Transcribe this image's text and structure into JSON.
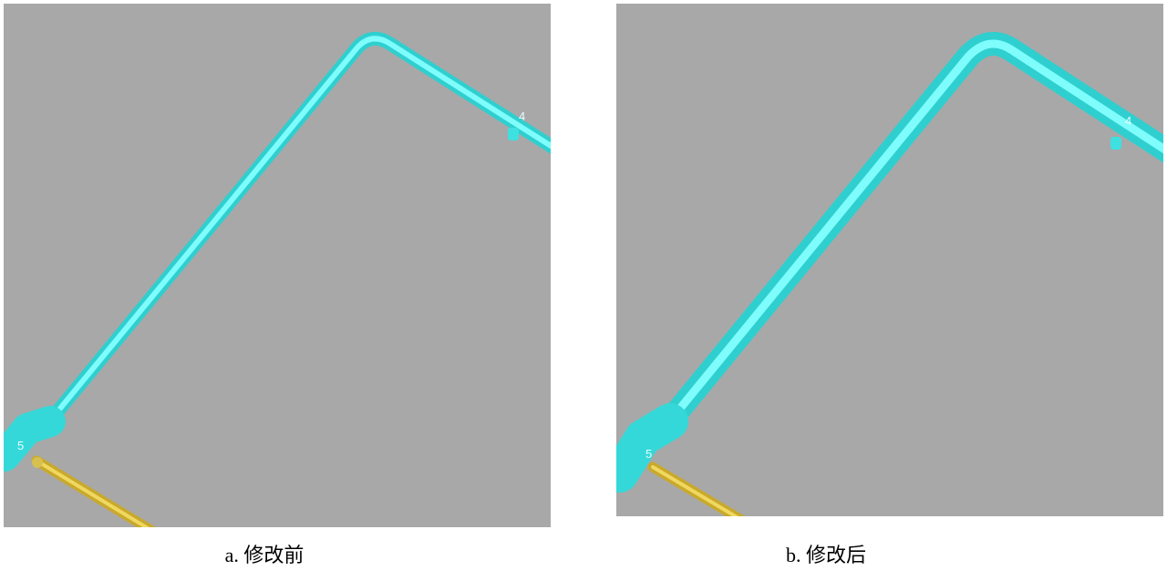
{
  "panels": [
    {
      "caption": "a. 修改前",
      "labels": [
        "4",
        "5"
      ]
    },
    {
      "caption": "b. 修改后",
      "labels": [
        "4",
        "5"
      ]
    }
  ]
}
